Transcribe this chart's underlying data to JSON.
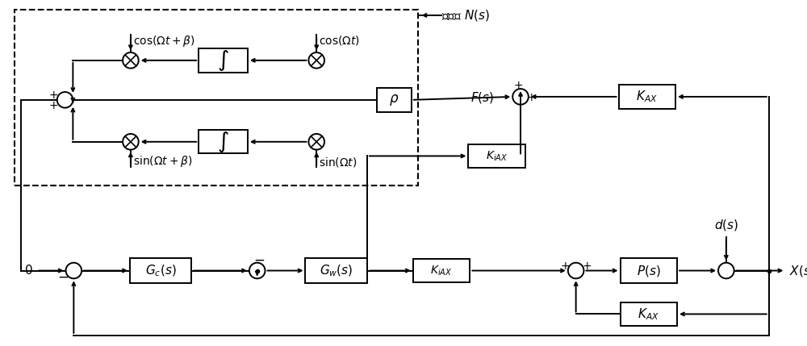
{
  "bg_color": "#ffffff",
  "figsize": [
    10.0,
    4.29
  ]
}
